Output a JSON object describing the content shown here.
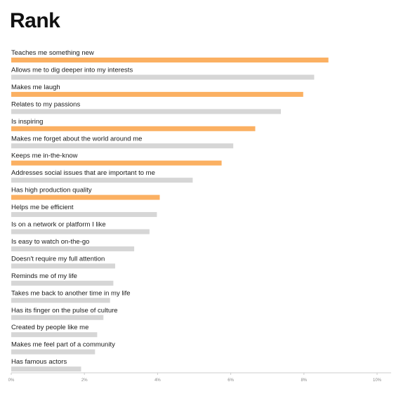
{
  "chart_data": {
    "type": "bar",
    "orientation": "horizontal",
    "title": "Rank",
    "xlim": [
      0,
      10
    ],
    "x_ticks": [
      "0%",
      "2%",
      "4%",
      "6%",
      "8%",
      "10%"
    ],
    "grid": false,
    "highlight_color": "#FBB062",
    "default_color": "#D6D6D6",
    "categories": [
      "Teaches me something new",
      "Allows me to dig deeper into my interests",
      "Makes me laugh",
      "Relates to my passions",
      "Is inspiring",
      "Makes me forget about the world around me",
      "Keeps me in-the-know",
      "Addresses social issues that are important to me",
      "Has high production quality",
      "Helps me be efficient",
      "Is on a network or platform I like",
      "Is easy to watch on-the-go",
      "Doesn't require my full attention",
      "Reminds me of my life",
      "Takes me back to another time in my life",
      "Has its finger on the pulse of culture",
      "Created by people like me",
      "Makes me feel part of a community",
      "Has famous actors"
    ],
    "values": [
      8.67,
      8.28,
      7.98,
      7.37,
      6.67,
      6.07,
      5.75,
      4.96,
      4.06,
      3.98,
      3.78,
      3.36,
      2.84,
      2.79,
      2.7,
      2.52,
      2.35,
      2.29,
      1.91
    ],
    "highlighted": [
      true,
      false,
      true,
      false,
      true,
      false,
      true,
      false,
      true,
      false,
      false,
      false,
      false,
      false,
      false,
      false,
      false,
      false,
      false
    ]
  }
}
